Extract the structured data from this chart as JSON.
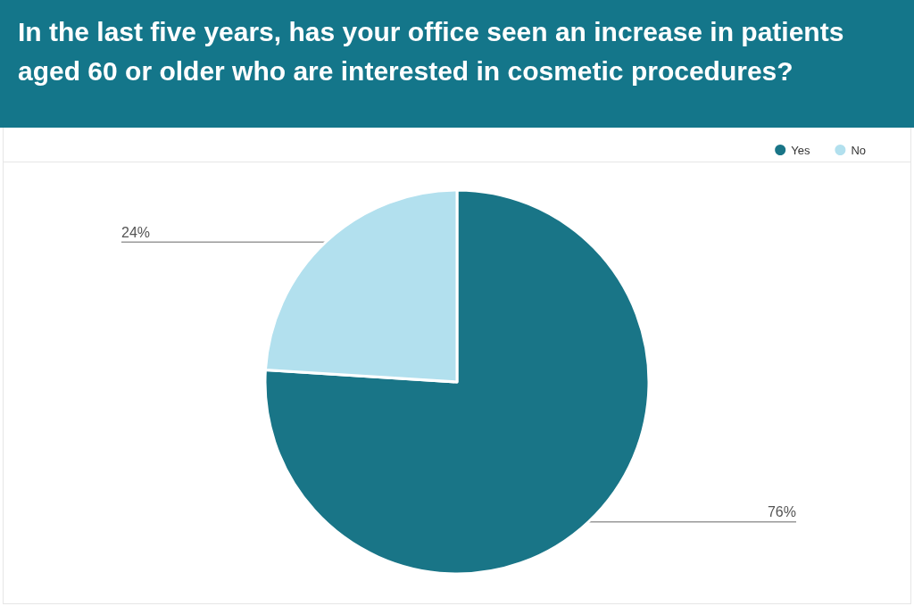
{
  "chart_data": {
    "type": "pie",
    "title": "In the last five years, has your office seen an increase in patients aged 60 or older who are interested in cosmetic procedures?",
    "categories": [
      "Yes",
      "No"
    ],
    "values": [
      76,
      24
    ],
    "colors": [
      "#197587",
      "#b2e0ee"
    ],
    "value_labels": [
      "76%",
      "24%"
    ],
    "legend": "top right"
  }
}
